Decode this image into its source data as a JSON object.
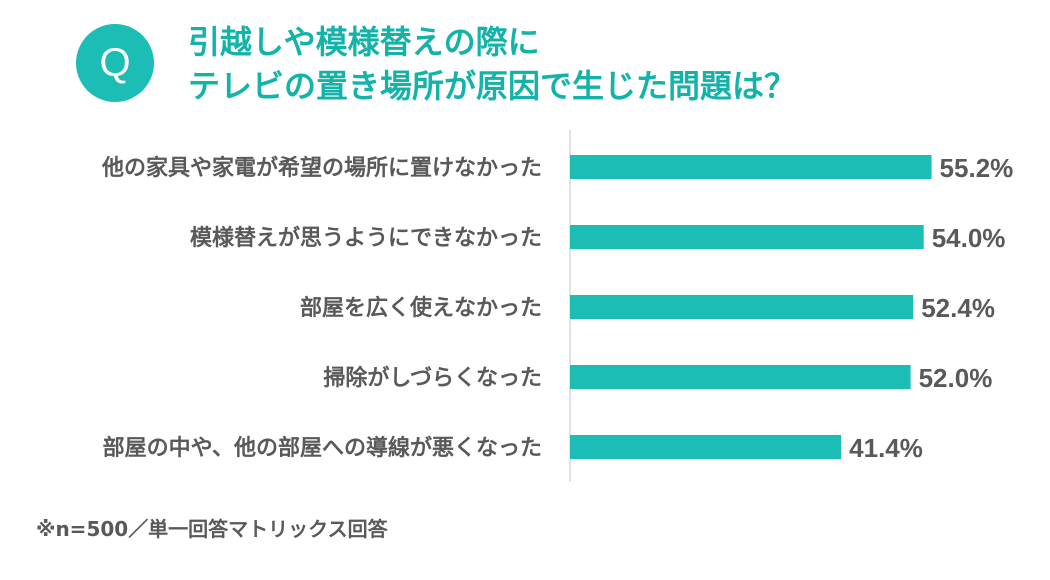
{
  "question_mark": "Q",
  "title": {
    "line1": "引越しや模様替えの際に",
    "line2": "テレビの置き場所が原因で生じた問題は？"
  },
  "footnote": "※n=500／単一回答マトリックス回答",
  "colors": {
    "accent": "#1bbdb4",
    "bar": "#1bbdb4",
    "label": "#595959",
    "axis": "#d9d9d9"
  },
  "chart_data": {
    "type": "bar",
    "orientation": "horizontal",
    "categories": [
      "他の家具や家電が希望の場所に置けなかった",
      "模様替えが思うようにできなかった",
      "部屋を広く使えなかった",
      "掃除がしづらくなった",
      "部屋の中や、他の部屋への導線が悪くなった"
    ],
    "values": [
      55.2,
      54.0,
      52.4,
      52.0,
      41.4
    ],
    "value_labels": [
      "55.2%",
      "54.0%",
      "52.4%",
      "52.0%",
      "41.4%"
    ],
    "unit": "%",
    "xlim": [
      0,
      100
    ],
    "grid": false,
    "legend": "none"
  }
}
